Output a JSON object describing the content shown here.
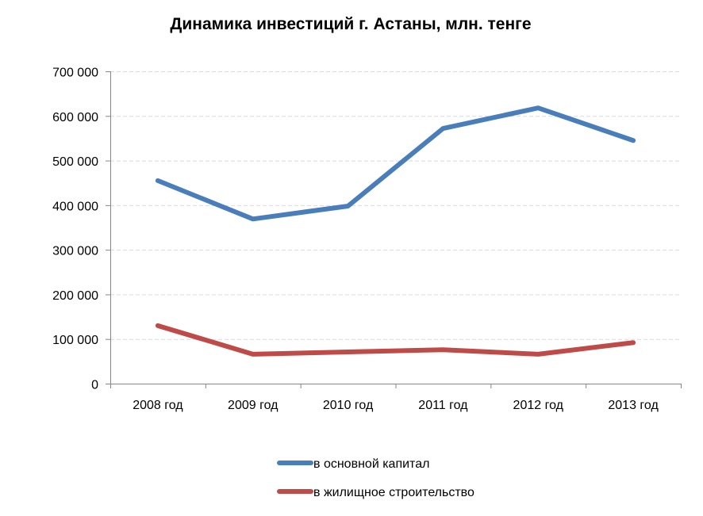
{
  "chart_data": {
    "type": "line",
    "title": "Динамика инвестиций г. Астаны, млн. тенге",
    "xlabel": "",
    "ylabel": "",
    "categories": [
      "2008 год",
      "2009 год",
      "2010 год",
      "2011 год",
      "2012 год",
      "2013 год"
    ],
    "ylim": [
      0,
      700000
    ],
    "yticks": [
      0,
      100000,
      200000,
      300000,
      400000,
      500000,
      600000,
      700000
    ],
    "ytick_labels": [
      "0",
      "100 000",
      "200 000",
      "300 000",
      "400 000",
      "500 000",
      "600 000",
      "700 000"
    ],
    "grid": true,
    "legend_position": "bottom",
    "series": [
      {
        "name": "в основной капитал",
        "color": "#4a7ebb",
        "values": [
          455000,
          369000,
          398000,
          572000,
          618000,
          545000
        ]
      },
      {
        "name": "в жилищное строительство",
        "color": "#be4b48",
        "values": [
          130000,
          66000,
          71000,
          76000,
          66000,
          92000
        ]
      }
    ]
  }
}
